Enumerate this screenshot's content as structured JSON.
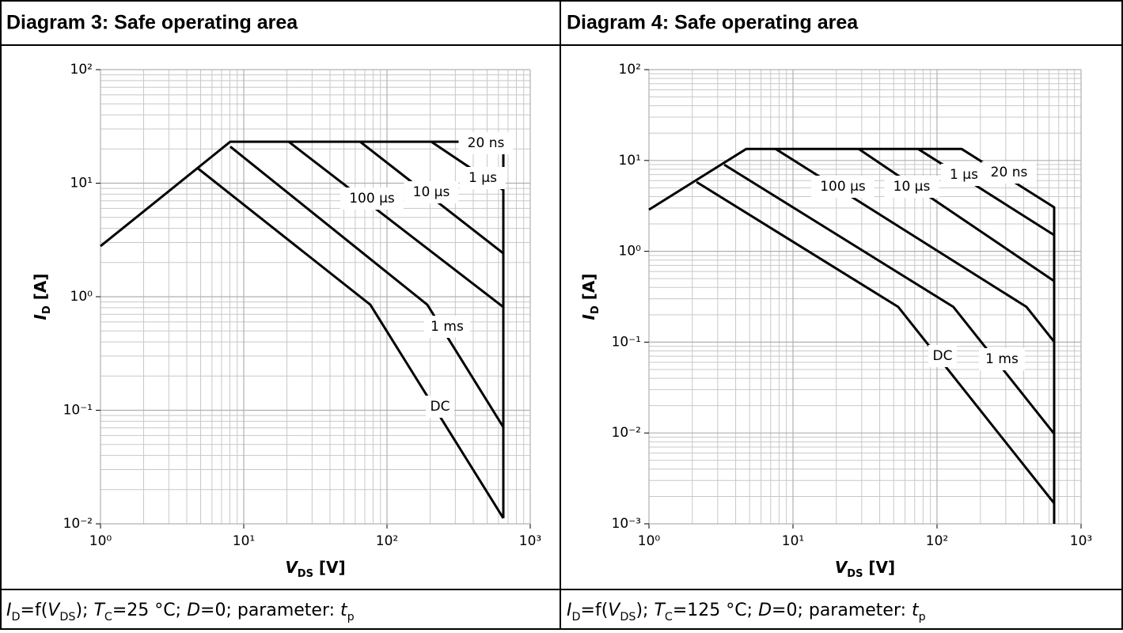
{
  "chart_data": [
    {
      "type": "line",
      "title": "Diagram 3: Safe operating area",
      "x_label": [
        "V",
        "DS",
        " [V]"
      ],
      "y_label": [
        "I",
        "D",
        " [A]"
      ],
      "caption": [
        "I",
        "D",
        "=f(",
        "V",
        "DS",
        "); ",
        "T",
        "C",
        "=25 °C; ",
        "D",
        "=0; parameter: ",
        "t",
        "p"
      ],
      "xscale": "log",
      "yscale": "log",
      "grid": true,
      "minor_grid": true,
      "xlim": [
        1,
        1000
      ],
      "ylim": [
        0.01,
        100
      ],
      "xticks": [
        {
          "value": 1,
          "label": "10⁰"
        },
        {
          "value": 10,
          "label": "10¹"
        },
        {
          "value": 100,
          "label": "10²"
        },
        {
          "value": 1000,
          "label": "10³"
        }
      ],
      "yticks": [
        {
          "value": 0.01,
          "label": "10⁻²"
        },
        {
          "value": 0.1,
          "label": "10⁻¹"
        },
        {
          "value": 1,
          "label": "10⁰"
        },
        {
          "value": 10,
          "label": "10¹"
        },
        {
          "value": 100,
          "label": "10²"
        }
      ],
      "series": [
        {
          "name": "20 ns",
          "color": "#000000",
          "x": [
            1,
            8.06,
            649,
            649
          ],
          "values": [
            2.79,
            23.2,
            23.2,
            0.0112
          ]
        },
        {
          "name": "1 µs",
          "color": "#000000",
          "x": [
            204,
            649
          ],
          "values": [
            23.2,
            8.7
          ]
        },
        {
          "name": "10 µs",
          "color": "#000000",
          "x": [
            64.9,
            649
          ],
          "values": [
            23.2,
            2.41
          ]
        },
        {
          "name": "100 µs",
          "color": "#000000",
          "x": [
            20.6,
            649
          ],
          "values": [
            23.2,
            0.81
          ]
        },
        {
          "name": "1 ms",
          "color": "#000000",
          "x": [
            8.06,
            191,
            649
          ],
          "values": [
            21,
            0.85,
            0.071
          ]
        },
        {
          "name": "DC",
          "color": "#000000",
          "x": [
            4.78,
            76.5,
            649
          ],
          "values": [
            13.5,
            0.85,
            0.0112
          ]
        }
      ]
    },
    {
      "type": "line",
      "title": "Diagram 4: Safe operating area",
      "x_label": [
        "V",
        "DS",
        " [V]"
      ],
      "y_label": [
        "I",
        "D",
        " [A]"
      ],
      "caption": [
        "I",
        "D",
        "=f(",
        "V",
        "DS",
        "); ",
        "T",
        "C",
        "=125 °C; ",
        "D",
        "=0; parameter: ",
        "t",
        "p"
      ],
      "xscale": "log",
      "yscale": "log",
      "grid": true,
      "minor_grid": true,
      "xlim": [
        1,
        1000
      ],
      "ylim": [
        0.001,
        100
      ],
      "xticks": [
        {
          "value": 1,
          "label": "10⁰"
        },
        {
          "value": 10,
          "label": "10¹"
        },
        {
          "value": 100,
          "label": "10²"
        },
        {
          "value": 1000,
          "label": "10³"
        }
      ],
      "yticks": [
        {
          "value": 0.001,
          "label": "10⁻³"
        },
        {
          "value": 0.01,
          "label": "10⁻²"
        },
        {
          "value": 0.1,
          "label": "10⁻¹"
        },
        {
          "value": 1,
          "label": "10⁰"
        },
        {
          "value": 10,
          "label": "10¹"
        },
        {
          "value": 100,
          "label": "10²"
        }
      ],
      "series": [
        {
          "name": "20 ns",
          "color": "#000000",
          "x": [
            1,
            4.74,
            148,
            650,
            650
          ],
          "values": [
            2.87,
            13.4,
            13.4,
            3.05,
            0.001
          ]
        },
        {
          "name": "1 µs",
          "color": "#000000",
          "x": [
            73.8,
            650
          ],
          "values": [
            13.4,
            1.51
          ]
        },
        {
          "name": "10 µs",
          "color": "#000000",
          "x": [
            28.6,
            650
          ],
          "values": [
            13.4,
            0.47
          ]
        },
        {
          "name": "100 µs",
          "color": "#000000",
          "x": [
            7.57,
            418,
            650
          ],
          "values": [
            13.4,
            0.244,
            0.101
          ]
        },
        {
          "name": "1 ms",
          "color": "#000000",
          "x": [
            3.33,
            130,
            650
          ],
          "values": [
            9.0,
            0.244,
            0.0098
          ]
        },
        {
          "name": "DC",
          "color": "#000000",
          "x": [
            2.14,
            53.8,
            650
          ],
          "values": [
            5.8,
            0.244,
            0.00168
          ]
        }
      ]
    }
  ]
}
